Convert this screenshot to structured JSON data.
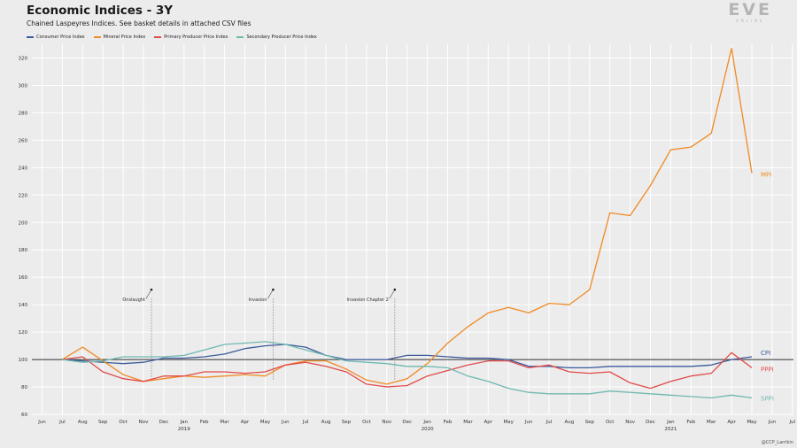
{
  "header": {
    "title": "Economic Indices - 3Y",
    "subtitle": "Chained Laspeyres Indices. See basket details in attached CSV files"
  },
  "logo": {
    "main": "EVE",
    "sub": "ONLINE"
  },
  "credit": "@CCP_Larrikin",
  "colors": {
    "background": "#ececec",
    "grid": "#ffffff",
    "cpi": "#3d5b9c",
    "mpi": "#f08a24",
    "pppi": "#e24a4a",
    "sppi": "#6fb8b0",
    "baseline": "#2b2b2b"
  },
  "chart_data": {
    "type": "line",
    "title": "Economic Indices - 3Y",
    "subtitle": "Chained Laspeyres Indices. See basket details in attached CSV files",
    "x_ticks": [
      "Jun",
      "Jul",
      "Aug",
      "Sep",
      "Oct",
      "Nov",
      "Dec",
      "Jan",
      "Feb",
      "Mar",
      "Apr",
      "May",
      "Jun",
      "Jul",
      "Aug",
      "Sep",
      "Oct",
      "Nov",
      "Dec",
      "Jan",
      "Feb",
      "Mar",
      "Apr",
      "May",
      "Jun",
      "Jul",
      "Aug",
      "Sep",
      "Oct",
      "Nov",
      "Dec",
      "Jan",
      "Feb",
      "Mar",
      "Apr",
      "May",
      "Jun",
      "Jul"
    ],
    "year_labels": [
      {
        "after_tick": 7,
        "label": "2019"
      },
      {
        "after_tick": 19,
        "label": "2020"
      },
      {
        "after_tick": 31,
        "label": "2021"
      }
    ],
    "ylim": [
      60,
      330
    ],
    "y_ticks": [
      60,
      80,
      100,
      120,
      140,
      160,
      180,
      200,
      220,
      240,
      260,
      280,
      300,
      320
    ],
    "grid": true,
    "legend_position": "top-left",
    "baseline": 100,
    "x": [
      "2018-07",
      "2018-08",
      "2018-09",
      "2018-10",
      "2018-11",
      "2018-12",
      "2019-01",
      "2019-02",
      "2019-03",
      "2019-04",
      "2019-05",
      "2019-06",
      "2019-07",
      "2019-08",
      "2019-09",
      "2019-10",
      "2019-11",
      "2019-12",
      "2020-01",
      "2020-02",
      "2020-03",
      "2020-04",
      "2020-05",
      "2020-06",
      "2020-07",
      "2020-08",
      "2020-09",
      "2020-10",
      "2020-11",
      "2020-12",
      "2021-01",
      "2021-02",
      "2021-03",
      "2021-04",
      "2021-05"
    ],
    "series": [
      {
        "name": "Consumer Price Index",
        "short": "CPI",
        "color": "#3d5b9c",
        "values": [
          100,
          99,
          98,
          97,
          98,
          101,
          101,
          102,
          104,
          108,
          110,
          111,
          109,
          103,
          100,
          100,
          100,
          103,
          103,
          102,
          101,
          101,
          100,
          95,
          95,
          94,
          94,
          95,
          95,
          95,
          95,
          95,
          96,
          100,
          102
        ]
      },
      {
        "name": "Mineral Price Index",
        "short": "MPI",
        "color": "#f08a24",
        "values": [
          100,
          109,
          99,
          89,
          84,
          86,
          88,
          87,
          88,
          89,
          88,
          96,
          99,
          99,
          93,
          85,
          82,
          86,
          97,
          112,
          124,
          134,
          138,
          134,
          141,
          140,
          151,
          207,
          205,
          227,
          253,
          255,
          265,
          327,
          236
        ]
      },
      {
        "name": "Primary Producer Price Index",
        "short": "PPPI",
        "color": "#e24a4a",
        "values": [
          100,
          102,
          91,
          86,
          84,
          88,
          88,
          91,
          91,
          90,
          91,
          96,
          98,
          95,
          91,
          82,
          80,
          81,
          88,
          92,
          96,
          99,
          99,
          94,
          96,
          91,
          90,
          91,
          83,
          79,
          84,
          88,
          90,
          105,
          94
        ]
      },
      {
        "name": "Secondary Producer Price Index",
        "short": "SPPI",
        "color": "#6fb8b0",
        "values": [
          100,
          98,
          99,
          102,
          102,
          102,
          103,
          107,
          111,
          112,
          113,
          111,
          107,
          103,
          99,
          98,
          97,
          95,
          95,
          94,
          88,
          84,
          79,
          76,
          75,
          75,
          75,
          77,
          76,
          75,
          74,
          73,
          72,
          74,
          72
        ]
      }
    ],
    "annotations": [
      {
        "label": "Onslaught",
        "x": "2018-11"
      },
      {
        "label": "Invasion",
        "x": "2019-05"
      },
      {
        "label": "Invasion Chapter 2",
        "x": "2019-11"
      }
    ]
  }
}
